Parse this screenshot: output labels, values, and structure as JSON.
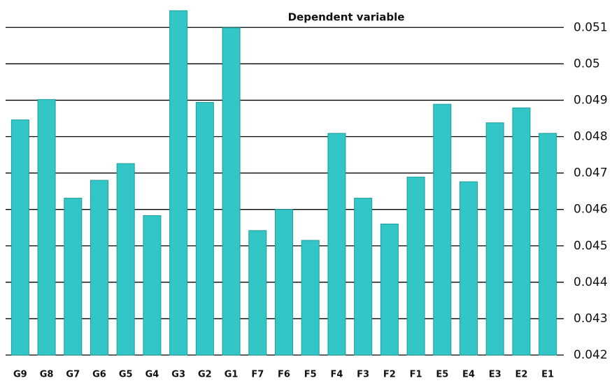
{
  "chart_data": {
    "type": "bar",
    "title": "Dependent variable",
    "categories": [
      "G9",
      "G8",
      "G7",
      "G6",
      "G5",
      "G4",
      "G3",
      "G2",
      "G1",
      "F7",
      "F6",
      "F5",
      "F4",
      "F3",
      "F2",
      "F1",
      "E5",
      "E4",
      "E3",
      "E2",
      "E1"
    ],
    "values": [
      0.04846,
      0.04902,
      0.04631,
      0.0468,
      0.04726,
      0.04583,
      0.05146,
      0.04894,
      0.05099,
      0.04542,
      0.046,
      0.04515,
      0.04809,
      0.04631,
      0.0456,
      0.04689,
      0.04889,
      0.04676,
      0.04838,
      0.04879,
      0.04809
    ],
    "color": "#33c6c6",
    "ylim": [
      0.042,
      0.0516
    ],
    "yticks": [
      0.042,
      0.043,
      0.044,
      0.045,
      0.046,
      0.047,
      0.048,
      0.049,
      0.05,
      0.051
    ],
    "grid": true
  }
}
